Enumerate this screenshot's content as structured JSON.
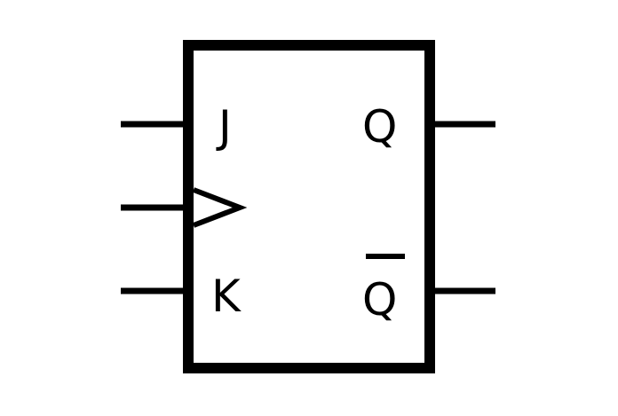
{
  "symbol": {
    "inputs": {
      "j_label": "J",
      "k_label": "K",
      "clock_icon": "clock-edge-triangle-icon"
    },
    "outputs": {
      "q_label": "Q",
      "q_bar_label": "Q"
    },
    "colors": {
      "stroke": "#000000",
      "background": "#ffffff"
    }
  }
}
